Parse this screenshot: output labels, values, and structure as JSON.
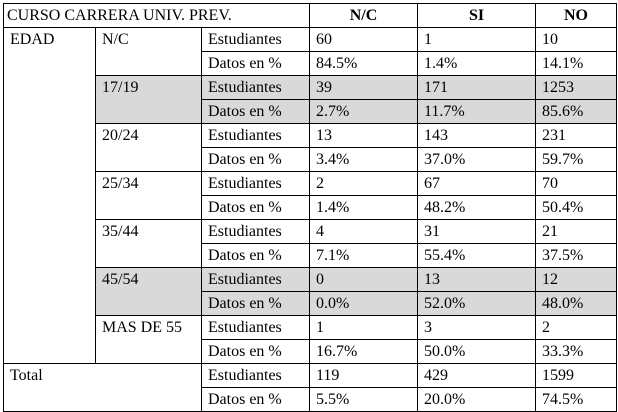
{
  "header": {
    "title": "CURSO CARRERA UNIV. PREV.",
    "columns": [
      "N/C",
      "SI",
      "NO"
    ]
  },
  "rows_label": "EDAD",
  "measure_labels": [
    "Estudiantes",
    "Datos en %"
  ],
  "groups": [
    {
      "label": "N/C",
      "shaded": false,
      "counts": [
        "60",
        "1",
        "10"
      ],
      "percents": [
        "84.5%",
        "1.4%",
        "14.1%"
      ]
    },
    {
      "label": "17/19",
      "shaded": true,
      "counts": [
        "39",
        "171",
        "1253"
      ],
      "percents": [
        "2.7%",
        "11.7%",
        "85.6%"
      ]
    },
    {
      "label": "20/24",
      "shaded": false,
      "counts": [
        "13",
        "143",
        "231"
      ],
      "percents": [
        "3.4%",
        "37.0%",
        "59.7%"
      ]
    },
    {
      "label": "25/34",
      "shaded": false,
      "counts": [
        "2",
        "67",
        "70"
      ],
      "percents": [
        "1.4%",
        "48.2%",
        "50.4%"
      ]
    },
    {
      "label": "35/44",
      "shaded": false,
      "counts": [
        "4",
        "31",
        "21"
      ],
      "percents": [
        "7.1%",
        "55.4%",
        "37.5%"
      ]
    },
    {
      "label": "45/54",
      "shaded": true,
      "counts": [
        "0",
        "13",
        "12"
      ],
      "percents": [
        "0.0%",
        "52.0%",
        "48.0%"
      ]
    },
    {
      "label": "MAS DE 55",
      "shaded": false,
      "counts": [
        "1",
        "3",
        "2"
      ],
      "percents": [
        "16.7%",
        "50.0%",
        "33.3%"
      ]
    }
  ],
  "total": {
    "label": "Total",
    "counts": [
      "119",
      "429",
      "1599"
    ],
    "percents": [
      "5.5%",
      "20.0%",
      "74.5%"
    ]
  }
}
